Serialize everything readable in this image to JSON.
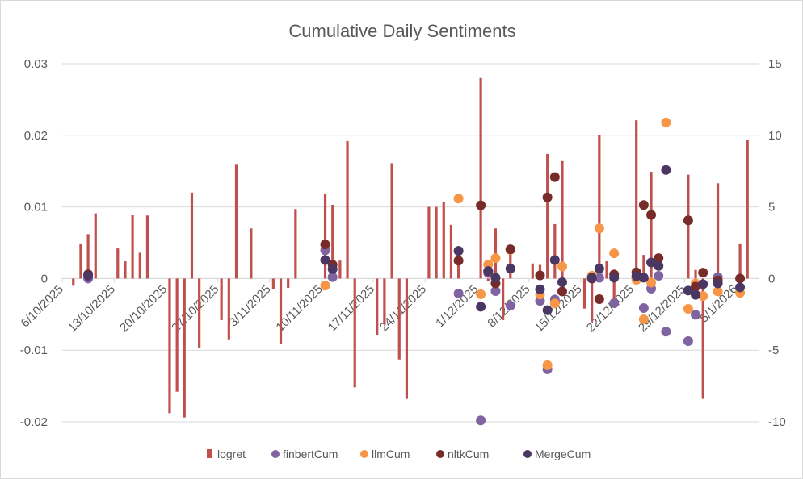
{
  "chart_data": {
    "type": "bar+scatter",
    "title": "Cumulative Daily Sentiments",
    "xlabel": "",
    "ylabel": "",
    "x_axis": "date",
    "xlim": [
      "2025-10-06",
      "2026-01-07"
    ],
    "x_tick_labels": [
      "6/10/2025",
      "13/10/2025",
      "20/10/2025",
      "27/10/2025",
      "3/11/2025",
      "10/11/2025",
      "17/11/2025",
      "24/11/2025",
      "1/12/2025",
      "8/12/2025",
      "15/12/2025",
      "22/12/2025",
      "29/12/2025",
      "5/1/2026"
    ],
    "y_left": {
      "range": [
        -0.02,
        0.03
      ],
      "ticks": [
        -0.02,
        -0.01,
        0,
        0.01,
        0.02,
        0.03
      ],
      "tick_labels": [
        "-0.02",
        "-0.01",
        "0",
        "0.01",
        "0.02",
        "0.03"
      ]
    },
    "y_right": {
      "range": [
        -10,
        15
      ],
      "ticks": [
        -10,
        -5,
        0,
        5,
        10,
        15
      ],
      "tick_labels": [
        "-10",
        "-5",
        "0",
        "5",
        "10",
        "15"
      ]
    },
    "grid": true,
    "legend_placement": "bottom",
    "dates": [
      "2025-10-07",
      "2025-10-08",
      "2025-10-09",
      "2025-10-10",
      "2025-10-13",
      "2025-10-14",
      "2025-10-15",
      "2025-10-16",
      "2025-10-17",
      "2025-10-20",
      "2025-10-21",
      "2025-10-22",
      "2025-10-23",
      "2025-10-24",
      "2025-10-27",
      "2025-10-28",
      "2025-10-29",
      "2025-10-31",
      "2025-11-03",
      "2025-11-04",
      "2025-11-05",
      "2025-11-06",
      "2025-11-10",
      "2025-11-11",
      "2025-11-12",
      "2025-11-13",
      "2025-11-14",
      "2025-11-17",
      "2025-11-18",
      "2025-11-19",
      "2025-11-20",
      "2025-11-21",
      "2025-11-24",
      "2025-11-25",
      "2025-11-26",
      "2025-11-27",
      "2025-11-28",
      "2025-12-01",
      "2025-12-02",
      "2025-12-03",
      "2025-12-04",
      "2025-12-05",
      "2025-12-08",
      "2025-12-09",
      "2025-12-10",
      "2025-12-11",
      "2025-12-12",
      "2025-12-15",
      "2025-12-16",
      "2025-12-17",
      "2025-12-18",
      "2025-12-19",
      "2025-12-22",
      "2025-12-23",
      "2025-12-24",
      "2025-12-25",
      "2025-12-26",
      "2025-12-29",
      "2025-12-30",
      "2025-12-31",
      "2026-01-02",
      "2026-01-05",
      "2026-01-06"
    ],
    "series": [
      {
        "name": "logret",
        "type": "bar",
        "axis": "left",
        "color": "#C0504D",
        "values": [
          -0.001,
          0.0049,
          0.0062,
          0.0091,
          0.0042,
          0.0024,
          0.0089,
          0.0036,
          0.0088,
          -0.0188,
          -0.0158,
          -0.0194,
          0.012,
          -0.0097,
          -0.0058,
          -0.0086,
          0.016,
          0.007,
          -0.0015,
          -0.0091,
          -0.0013,
          0.0097,
          0.0118,
          0.0103,
          0.0025,
          0.0192,
          -0.0152,
          -0.0079,
          -0.0064,
          0.0161,
          -0.0113,
          -0.0168,
          0.01,
          0.01,
          0.0107,
          0.0075,
          0.0025,
          0.028,
          -0.0003,
          0.007,
          -0.0058,
          0.004,
          0.0021,
          0.0019,
          0.0174,
          0.0076,
          0.0164,
          -0.0042,
          -0.006,
          0.02,
          0.0024,
          -0.003,
          0.0221,
          0.0033,
          0.0149,
          null,
          null,
          0.0145,
          0.0012,
          -0.0168,
          0.0133,
          0.0049,
          0.0193
        ]
      },
      {
        "name": "finbertCum",
        "type": "scatter",
        "axis": "right",
        "color": "#8064A2",
        "values": [
          null,
          null,
          0.0,
          null,
          null,
          null,
          null,
          null,
          null,
          null,
          null,
          null,
          null,
          null,
          null,
          null,
          null,
          null,
          null,
          null,
          null,
          null,
          1.97,
          0.1,
          null,
          null,
          null,
          null,
          null,
          null,
          null,
          null,
          null,
          null,
          null,
          null,
          -1.05,
          -9.9,
          0.39,
          -0.88,
          null,
          -1.89,
          null,
          -1.56,
          -6.33,
          -1.46,
          null,
          null,
          0.0,
          0.05,
          null,
          -1.72,
          0.1,
          -2.06,
          -0.71,
          0.19,
          -3.71,
          -4.37,
          -2.53,
          null,
          0.1,
          null,
          null
        ]
      },
      {
        "name": "llmCum",
        "type": "scatter",
        "axis": "right",
        "color": "#F79646",
        "values": [
          null,
          null,
          null,
          null,
          null,
          null,
          null,
          null,
          null,
          null,
          null,
          null,
          null,
          null,
          null,
          null,
          null,
          null,
          null,
          null,
          null,
          null,
          -0.49,
          null,
          null,
          null,
          null,
          null,
          null,
          null,
          null,
          null,
          null,
          null,
          null,
          null,
          5.58,
          -1.1,
          0.97,
          1.42,
          null,
          2.0,
          null,
          -1.12,
          -6.05,
          -1.74,
          0.84,
          null,
          0.2,
          3.5,
          null,
          1.76,
          -0.09,
          -2.85,
          -0.28,
          null,
          10.9,
          -2.12,
          -0.34,
          -1.22,
          -0.9,
          -1.0,
          null
        ]
      },
      {
        "name": "nltkCum",
        "type": "scatter",
        "axis": "right",
        "color": "#772C2A",
        "values": [
          null,
          null,
          0.3,
          null,
          null,
          null,
          null,
          null,
          null,
          null,
          null,
          null,
          null,
          null,
          null,
          null,
          null,
          null,
          null,
          null,
          null,
          null,
          2.38,
          0.96,
          null,
          null,
          null,
          null,
          null,
          null,
          null,
          null,
          null,
          null,
          null,
          null,
          1.25,
          5.11,
          0.5,
          -0.34,
          null,
          2.04,
          null,
          0.22,
          5.67,
          7.08,
          -0.9,
          null,
          0.0,
          -1.44,
          null,
          0.28,
          0.43,
          5.13,
          4.44,
          1.42,
          null,
          4.06,
          -0.56,
          0.41,
          -0.13,
          0.0,
          null
        ]
      },
      {
        "name": "MergeCum",
        "type": "scatter",
        "axis": "right",
        "color": "#4A3763",
        "values": [
          null,
          null,
          0.2,
          null,
          null,
          null,
          null,
          null,
          null,
          null,
          null,
          null,
          null,
          null,
          null,
          null,
          null,
          null,
          null,
          null,
          null,
          null,
          1.29,
          0.66,
          null,
          null,
          null,
          null,
          null,
          null,
          null,
          null,
          null,
          null,
          null,
          null,
          1.93,
          -1.97,
          0.52,
          0.05,
          null,
          0.69,
          null,
          -0.75,
          -2.21,
          1.29,
          -0.26,
          null,
          0.06,
          0.69,
          null,
          0.06,
          0.16,
          0.06,
          1.12,
          0.88,
          7.58,
          -0.84,
          -1.14,
          -0.39,
          -0.34,
          -0.62,
          null
        ]
      }
    ]
  }
}
